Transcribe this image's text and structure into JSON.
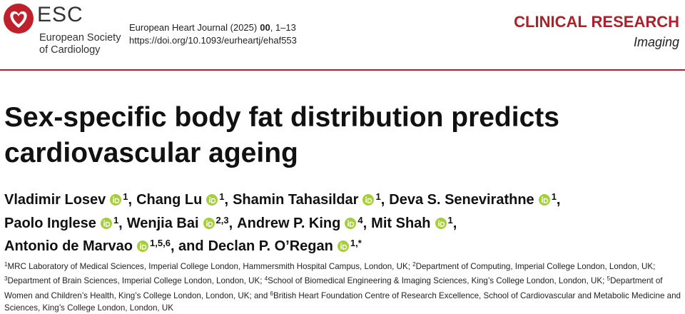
{
  "header": {
    "logo": "ESC",
    "society": [
      "European Society",
      "of Cardiology"
    ],
    "journal": {
      "name": "European Heart Journal (2025)",
      "volume": "00",
      "pages": ", 1–13"
    },
    "doi": "https://doi.org/10.1093/eurheartj/ehaf553",
    "section": "CLINICAL RESEARCH",
    "subsection": "Imaging"
  },
  "title": [
    "Sex-specific body fat distribution predicts",
    "cardiovascular ageing"
  ],
  "authors": [
    [
      {
        "name": "Vladimir Losev",
        "sup": "1",
        "sep": ","
      },
      {
        "name": "Chang Lu",
        "sup": "1",
        "sep": ","
      },
      {
        "name": "Shamin Tahasildar",
        "sup": "1",
        "sep": ","
      },
      {
        "name": "Deva S. Senevirathne",
        "sup": "1",
        "sep": ","
      }
    ],
    [
      {
        "name": "Paolo Inglese",
        "sup": "1",
        "sep": ","
      },
      {
        "name": "Wenjia Bai",
        "sup": "2,3",
        "sep": ","
      },
      {
        "name": "Andrew P. King",
        "sup": "4",
        "sep": ","
      },
      {
        "name": "Mit Shah",
        "sup": "1",
        "sep": ","
      }
    ],
    [
      {
        "name": "Antonio de Marvao",
        "sup": "1,5,6",
        "sep": ", and"
      },
      {
        "name": "Declan P. O’Regan",
        "sup": "1,*"
      }
    ]
  ],
  "affiliations": [
    {
      "number": "1",
      "text": "MRC Laboratory of Medical Sciences, Imperial College London, Hammersmith Hospital Campus, London, UK; "
    },
    {
      "number": "2",
      "text": "Department of Computing, Imperial College London, London, UK; "
    },
    {
      "number": "3",
      "text": "Department of Brain Sciences, Imperial College London, London, UK; "
    },
    {
      "number": "4",
      "text": "School of Biomedical Engineering & Imaging Sciences, King’s College London, London, UK; "
    },
    {
      "number": "5",
      "text": "Department of Women and Children’s Health, King’s College London, London, UK; and "
    },
    {
      "number": "6",
      "text": "British Heart Foundation Centre of Research Excellence, School of Cardiovascular and Metabolic Medicine and Sciences, King’s College London, London, UK"
    }
  ]
}
